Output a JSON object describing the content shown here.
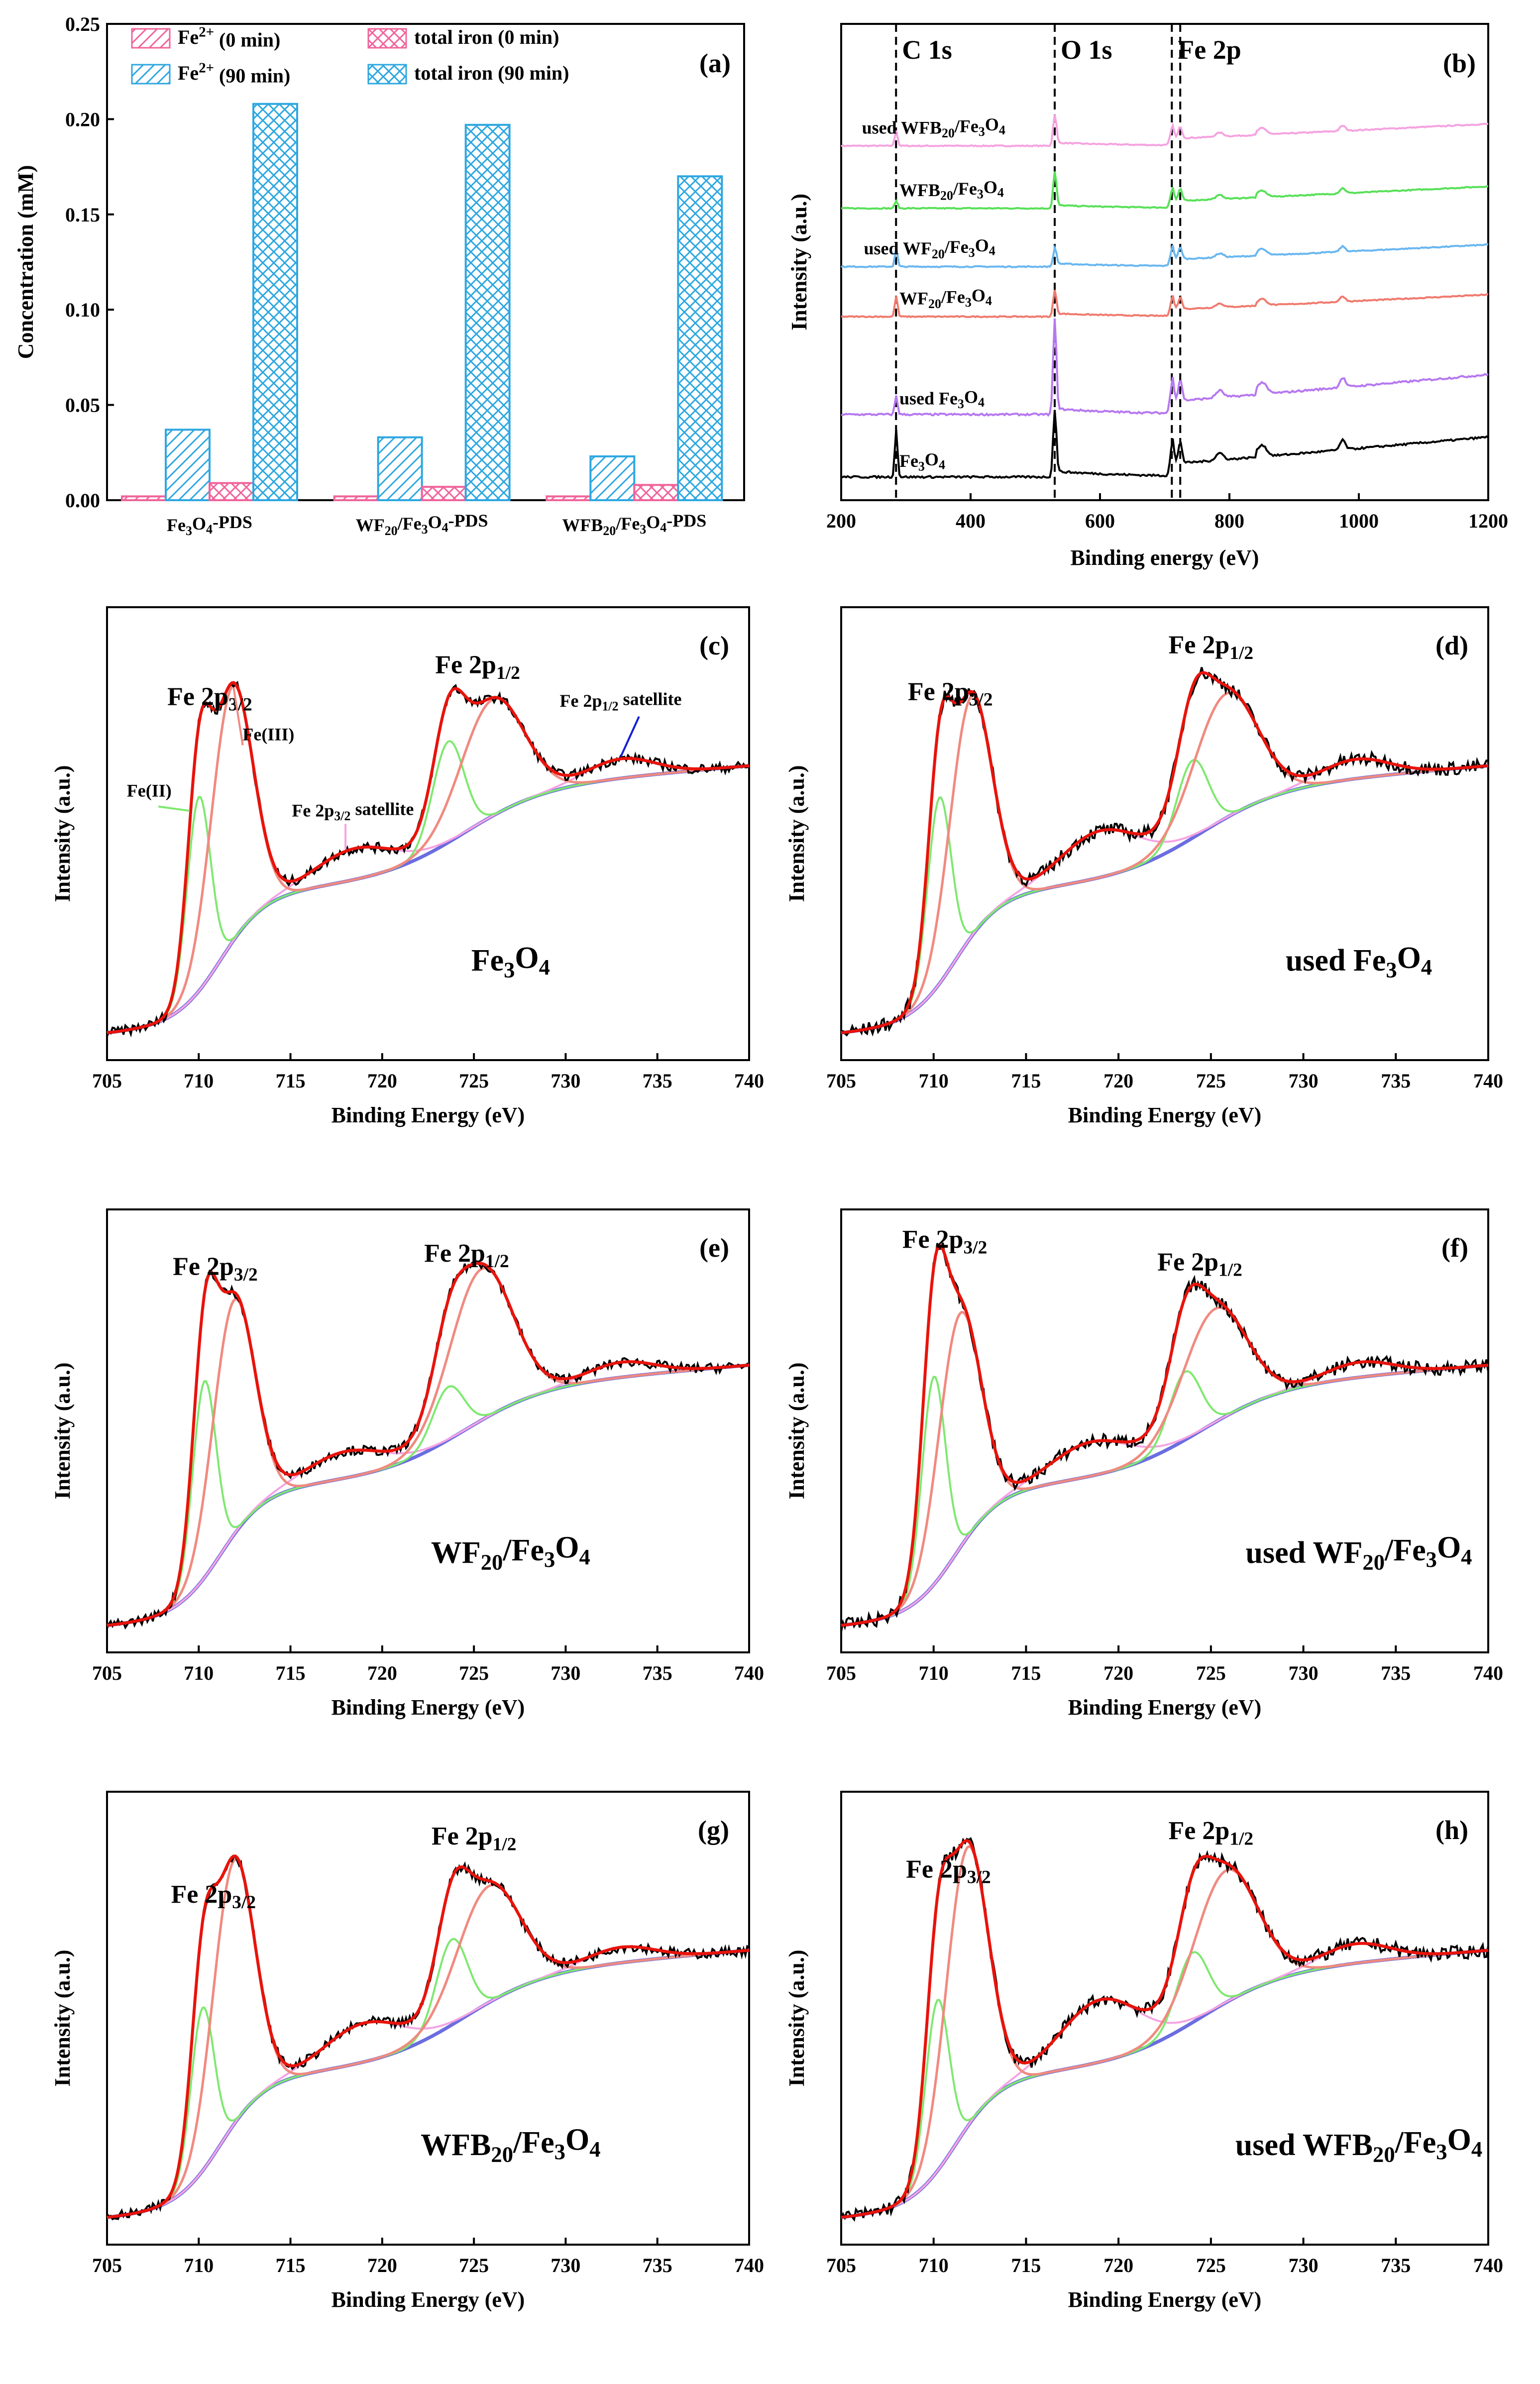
{
  "chart_data": [
    {
      "panel": "(a)",
      "type": "bar",
      "ylabel": "Concentration (mM)",
      "ylim": [
        0,
        0.25
      ],
      "yticks": [
        "0.00",
        "0.05",
        "0.10",
        "0.15",
        "0.20",
        "0.25"
      ],
      "categories": [
        "Fe3O4-PDS",
        "WF20/Fe3O4-PDS",
        "WFB20/Fe3O4-PDS"
      ],
      "category_labels": [
        {
          "a": "Fe",
          "b": "3",
          "c": "O",
          "d": "4",
          "e": "-PDS"
        },
        {
          "a": "WF",
          "b": "20",
          "c": "/Fe",
          "d": "3",
          "e": "O",
          "f": "4",
          "g": "-PDS"
        },
        {
          "a": "WFB",
          "b": "20",
          "c": "/Fe",
          "d": "3",
          "e": "O",
          "f": "4",
          "g": "-PDS"
        }
      ],
      "legend": [
        {
          "base": "Fe",
          "sup": "2+",
          "rest": " (0 min)"
        },
        {
          "base": "total iron (0 min)"
        },
        {
          "base": "Fe",
          "sup": "2+",
          "rest": " (90 min)"
        },
        {
          "base": "total iron (90 min)"
        }
      ],
      "series": [
        {
          "name": "Fe2+ (0 min)",
          "values": [
            0.002,
            0.002,
            0.002
          ],
          "color": "#f0649b",
          "pattern": "diag"
        },
        {
          "name": "Fe2+ (90 min)",
          "values": [
            0.037,
            0.033,
            0.023
          ],
          "color": "#2ea7e0",
          "pattern": "diag"
        },
        {
          "name": "total iron (0 min)",
          "values": [
            0.009,
            0.007,
            0.008
          ],
          "color": "#f0649b",
          "pattern": "cross"
        },
        {
          "name": "total iron (90 min)",
          "values": [
            0.208,
            0.197,
            0.17
          ],
          "color": "#2ea7e0",
          "pattern": "cross"
        }
      ]
    },
    {
      "panel": "(b)",
      "type": "line",
      "xlabel": "Binding energy (eV)",
      "ylabel": "Intensity (a.u.)",
      "xlim": [
        200,
        1200
      ],
      "xticks": [
        "200",
        "400",
        "600",
        "800",
        "1000",
        "1200"
      ],
      "markers": [
        {
          "label": "C 1s",
          "x": 284.8
        },
        {
          "label": "O 1s",
          "x": 530
        },
        {
          "label": "Fe 2p",
          "x": 711
        },
        {
          "label": "",
          "x": 724
        }
      ],
      "series": [
        {
          "name": "used WFB20/Fe3O4",
          "label": {
            "a": "used WFB",
            "b": "20",
            "c": "/Fe",
            "d": "3",
            "e": "O",
            "f": "4"
          },
          "color": "#f5a3e0",
          "baseline": 0.83,
          "spike_c": 0.06,
          "spike_o": 0.12
        },
        {
          "name": "WFB20/Fe3O4",
          "label": {
            "a": "WFB",
            "b": "20",
            "c": "/Fe",
            "d": "3",
            "e": "O",
            "f": "4"
          },
          "color": "#59e059",
          "baseline": 0.68,
          "spike_c": 0.03,
          "spike_o": 0.14
        },
        {
          "name": "used WF20/Fe3O4",
          "label": {
            "a": "used WF",
            "b": "20",
            "c": "/Fe",
            "d": "3",
            "e": "O",
            "f": "4"
          },
          "color": "#6ab7f0",
          "baseline": 0.54,
          "spike_c": 0.07,
          "spike_o": 0.07
        },
        {
          "name": "WF20/Fe3O4",
          "label": {
            "a": "WF",
            "b": "20",
            "c": "/Fe",
            "d": "3",
            "e": "O",
            "f": "4"
          },
          "color": "#f07a6e",
          "baseline": 0.42,
          "spike_c": 0.08,
          "spike_o": 0.1
        },
        {
          "name": "used Fe3O4",
          "label": {
            "a": "used Fe",
            "b": "3",
            "c": "O",
            "d": "4"
          },
          "color": "#b678f0",
          "baseline": 0.18,
          "spike_c": 0.04,
          "spike_o": 0.2
        },
        {
          "name": "Fe3O4",
          "label": {
            "a": "Fe",
            "b": "3",
            "c": "O",
            "d": "4"
          },
          "color": "#000000",
          "baseline": 0.03,
          "spike_c": 0.1,
          "spike_o": 0.14
        }
      ]
    },
    {
      "panel": "(c)",
      "type": "line",
      "xlabel": "Binding Energy (eV)",
      "ylabel": "Intensity (a.u.)",
      "xlim": [
        705,
        740
      ],
      "xticks": [
        "705",
        "710",
        "715",
        "720",
        "725",
        "730",
        "735",
        "740"
      ],
      "sample": {
        "a": "Fe",
        "b": "3",
        "c": "O",
        "d": "4"
      },
      "peak_labels": {
        "p32": "Fe 2p",
        "s32": "3/2",
        "p12": "Fe 2p",
        "s12": "1/2"
      },
      "annotations": {
        "fe2": "Fe(II)",
        "fe3": "Fe(III)",
        "sat32": "Fe 2p",
        "sat32sub": "3/2",
        "sat32rest": " satellite",
        "sat12": "Fe 2p",
        "sat12sub": "1/2",
        "sat12rest": " satellite"
      },
      "components": {
        "fe2_pos": 710.0,
        "fe2_amp": 0.5,
        "fe3_pos": 711.8,
        "fe3_amp": 0.66,
        "sat32_pos": 718.5,
        "sat32_amp": 0.08,
        "fe2b_pos": 723.6,
        "fe2b_amp": 0.26,
        "fe3b_pos": 726.0,
        "fe3b_amp": 0.3,
        "sat12_pos": 733.0,
        "sat12_amp": 0.05
      }
    },
    {
      "panel": "(d)",
      "type": "line",
      "xlabel": "Binding Energy (eV)",
      "ylabel": "Intensity (a.u.)",
      "xlim": [
        705,
        740
      ],
      "xticks": [
        "705",
        "710",
        "715",
        "720",
        "725",
        "730",
        "735",
        "740"
      ],
      "sample": {
        "a": "used Fe",
        "b": "3",
        "c": "O",
        "d": "4"
      },
      "peak_labels": {
        "p32": "Fe 2p",
        "s32": "3/2",
        "p12": "Fe 2p",
        "s12": "1/2"
      },
      "components": {
        "fe2_pos": 710.3,
        "fe2_amp": 0.48,
        "fe3_pos": 712.0,
        "fe3_amp": 0.62,
        "sat32_pos": 719.0,
        "sat32_amp": 0.12,
        "fe2b_pos": 724.0,
        "fe2b_amp": 0.2,
        "fe3b_pos": 725.8,
        "fe3b_amp": 0.32,
        "sat12_pos": 732.8,
        "sat12_amp": 0.05
      }
    },
    {
      "panel": "(e)",
      "type": "line",
      "xlabel": "Binding Energy (eV)",
      "ylabel": "Intensity (a.u.)",
      "xlim": [
        705,
        740
      ],
      "xticks": [
        "705",
        "710",
        "715",
        "720",
        "725",
        "730",
        "735",
        "740"
      ],
      "sample": {
        "a": "WF",
        "b": "20",
        "c": "/Fe",
        "d": "3",
        "e": "O",
        "f": "4"
      },
      "peak_labels": {
        "p32": "Fe 2p",
        "s32": "3/2",
        "p12": "Fe 2p",
        "s12": "1/2"
      },
      "components": {
        "fe2_pos": 710.3,
        "fe2_amp": 0.52,
        "fe3_pos": 711.9,
        "fe3_amp": 0.62,
        "sat32_pos": 718.0,
        "sat32_amp": 0.07,
        "fe2b_pos": 723.6,
        "fe2b_amp": 0.14,
        "fe3b_pos": 725.4,
        "fe3b_amp": 0.4,
        "sat12_pos": 733.0,
        "sat12_amp": 0.04
      }
    },
    {
      "panel": "(f)",
      "type": "line",
      "xlabel": "Binding Energy (eV)",
      "ylabel": "Intensity (a.u.)",
      "xlim": [
        705,
        740
      ],
      "xticks": [
        "705",
        "710",
        "715",
        "720",
        "725",
        "730",
        "735",
        "740"
      ],
      "sample": {
        "a": "used WF",
        "b": "20",
        "c": "/Fe",
        "d": "3",
        "e": "O",
        "f": "4"
      },
      "peak_labels": {
        "p32": "Fe 2p",
        "s32": "3/2",
        "p12": "Fe 2p",
        "s12": "1/2"
      },
      "components": {
        "fe2_pos": 710.0,
        "fe2_amp": 0.55,
        "fe3_pos": 711.4,
        "fe3_amp": 0.62,
        "sat32_pos": 718.5,
        "sat32_amp": 0.09,
        "fe2b_pos": 723.6,
        "fe2b_amp": 0.18,
        "fe3b_pos": 725.2,
        "fe3b_amp": 0.3,
        "sat12_pos": 733.0,
        "sat12_amp": 0.04
      }
    },
    {
      "panel": "(g)",
      "type": "line",
      "xlabel": "Binding Energy (eV)",
      "ylabel": "Intensity (a.u.)",
      "xlim": [
        705,
        740
      ],
      "xticks": [
        "705",
        "710",
        "715",
        "720",
        "725",
        "730",
        "735",
        "740"
      ],
      "sample": {
        "a": "WFB",
        "b": "20",
        "c": "/Fe",
        "d": "3",
        "e": "O",
        "f": "4"
      },
      "peak_labels": {
        "p32": "Fe 2p",
        "s32": "3/2",
        "p12": "Fe 2p",
        "s12": "1/2"
      },
      "components": {
        "fe2_pos": 710.2,
        "fe2_amp": 0.42,
        "fe3_pos": 711.9,
        "fe3_amp": 0.68,
        "sat32_pos": 719.0,
        "sat32_amp": 0.1,
        "fe2b_pos": 723.8,
        "fe2b_amp": 0.22,
        "fe3b_pos": 725.8,
        "fe3b_amp": 0.3,
        "sat12_pos": 733.0,
        "sat12_amp": 0.04
      }
    },
    {
      "panel": "(h)",
      "type": "line",
      "xlabel": "Binding Energy (eV)",
      "ylabel": "Intensity (a.u.)",
      "xlim": [
        705,
        740
      ],
      "xticks": [
        "705",
        "710",
        "715",
        "720",
        "725",
        "730",
        "735",
        "740"
      ],
      "sample": {
        "a": "used WFB",
        "b": "20",
        "c": "/Fe",
        "d": "3",
        "e": "O",
        "f": "4"
      },
      "peak_labels": {
        "p32": "Fe 2p",
        "s32": "3/2",
        "p12": "Fe 2p",
        "s12": "1/2"
      },
      "components": {
        "fe2_pos": 710.2,
        "fe2_amp": 0.44,
        "fe3_pos": 711.8,
        "fe3_amp": 0.72,
        "sat32_pos": 719.0,
        "sat32_amp": 0.16,
        "fe2b_pos": 724.0,
        "fe2b_amp": 0.18,
        "fe3b_pos": 725.8,
        "fe3b_amp": 0.34,
        "sat12_pos": 732.8,
        "sat12_amp": 0.05
      }
    }
  ],
  "colors": {
    "fe2": "#7ee86f",
    "fe3": "#f08a80",
    "sat": "#f5a3e3",
    "background": "#6b6de0",
    "envelope": "#e8130b",
    "raw": "#000000",
    "blue_arrow": "#1520d6"
  }
}
